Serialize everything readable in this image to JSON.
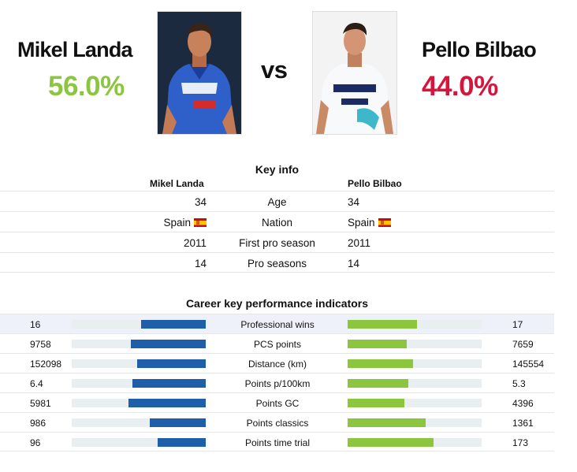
{
  "left_rider": {
    "name": "Mikel Landa",
    "pct": "56.0%",
    "pct_color": "#8cc63f",
    "photo_icon": "rider-photo-blue-kit"
  },
  "right_rider": {
    "name": "Pello Bilbao",
    "pct": "44.0%",
    "pct_color": "#d7143c",
    "photo_icon": "rider-photo-white-kit"
  },
  "vs_label": "vs",
  "key_info": {
    "title": "Key info",
    "left_header": "Mikel Landa",
    "right_header": "Pello Bilbao",
    "rows": [
      {
        "label": "Age",
        "left": "34",
        "right": "34",
        "left_flag": false,
        "right_flag": false
      },
      {
        "label": "Nation",
        "left": "Spain",
        "right": "Spain",
        "left_flag": true,
        "right_flag": true
      },
      {
        "label": "First pro season",
        "left": "2011",
        "right": "2011",
        "left_flag": false,
        "right_flag": false
      },
      {
        "label": "Pro seasons",
        "left": "14",
        "right": "14",
        "left_flag": false,
        "right_flag": false
      }
    ]
  },
  "kpi": {
    "title": "Career key performance indicators",
    "left_color": "#1f5ea8",
    "right_color": "#8cc63f",
    "rows": [
      {
        "label": "Professional wins",
        "left": "16",
        "right": "17",
        "left_share": 0.485,
        "right_share": 0.515
      },
      {
        "label": "PCS points",
        "left": "9758",
        "right": "7659",
        "left_share": 0.56,
        "right_share": 0.44
      },
      {
        "label": "Distance (km)",
        "left": "152098",
        "right": "145554",
        "left_share": 0.511,
        "right_share": 0.489
      },
      {
        "label": "Points p/100km",
        "left": "6.4",
        "right": "5.3",
        "left_share": 0.547,
        "right_share": 0.453
      },
      {
        "label": "Points GC",
        "left": "5981",
        "right": "4396",
        "left_share": 0.576,
        "right_share": 0.424
      },
      {
        "label": "Points classics",
        "left": "986",
        "right": "1361",
        "left_share": 0.42,
        "right_share": 0.58
      },
      {
        "label": "Points time trial",
        "left": "96",
        "right": "173",
        "left_share": 0.357,
        "right_share": 0.643
      }
    ]
  }
}
